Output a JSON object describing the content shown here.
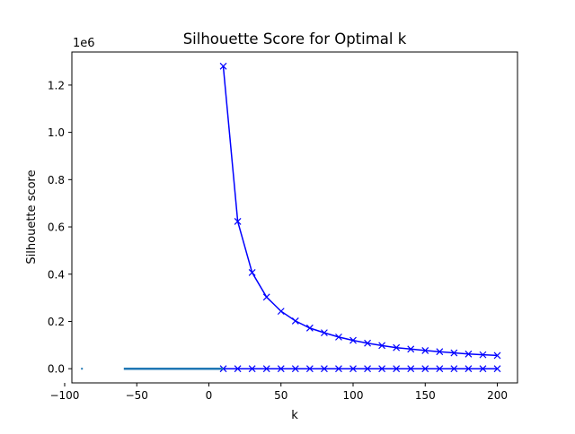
{
  "chart_data": {
    "type": "line",
    "title": "Silhouette Score for Optimal k",
    "xlabel": "k",
    "ylabel": "Silhouette score",
    "y_offset_label": "1e6",
    "y_scale_factor": 1000000,
    "xlim": [
      -95,
      214
    ],
    "ylim": [
      -60000,
      1340000
    ],
    "x_ticks": [
      -100,
      -50,
      0,
      50,
      100,
      150,
      200
    ],
    "x_tick_labels": [
      "−100",
      "−50",
      "0",
      "50",
      "100",
      "150",
      "200"
    ],
    "y_ticks": [
      0,
      200000,
      400000,
      600000,
      800000,
      1000000,
      1200000
    ],
    "y_tick_labels": [
      "0.0",
      "0.2",
      "0.4",
      "0.6",
      "0.8",
      "1.0",
      "1.2"
    ],
    "grid": false,
    "legend": "none",
    "series": [
      {
        "color": "#0000ff",
        "marker": "x",
        "x": [
          10,
          20,
          30,
          40,
          50,
          60,
          70,
          80,
          90,
          100,
          110,
          120,
          130,
          140,
          150,
          160,
          170,
          180,
          190,
          200
        ],
        "values": [
          1280000,
          623000,
          407000,
          303000,
          243000,
          202000,
          172000,
          152000,
          134000,
          120000,
          108000,
          98000,
          89000,
          83000,
          77000,
          72000,
          67000,
          62000,
          59000,
          56000
        ]
      },
      {
        "color": "#0000ff",
        "marker": "x",
        "x": [
          10,
          20,
          30,
          40,
          50,
          60,
          70,
          80,
          90,
          100,
          110,
          120,
          130,
          140,
          150,
          160,
          170,
          180,
          190,
          200
        ],
        "values": [
          0,
          0,
          0,
          0,
          0,
          0,
          0,
          0,
          0,
          0,
          0,
          0,
          0,
          0,
          0,
          0,
          0,
          0,
          0,
          0
        ]
      },
      {
        "color": "#1f77b4",
        "marker": "none",
        "x": [
          -59,
          10
        ],
        "values": [
          0,
          0
        ]
      },
      {
        "color": "#1f77b4",
        "marker": "point",
        "x": [
          -88
        ],
        "values": [
          0
        ]
      }
    ]
  }
}
